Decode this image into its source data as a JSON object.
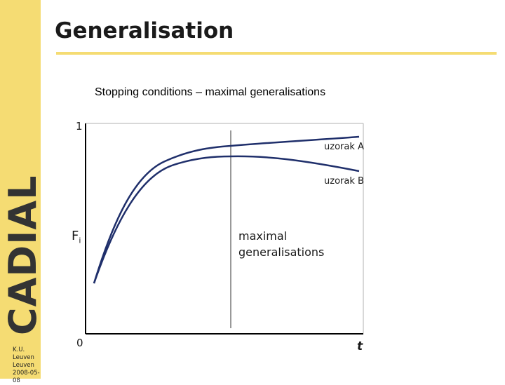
{
  "sidebar": {
    "brand": "CADIAL",
    "org_line1": "K.U. Leuven",
    "org_line2": "Leuven",
    "date": "2008-05-08"
  },
  "slide": {
    "title": "Generalisation",
    "subtitle": "Stopping conditions – maximal generalisations"
  },
  "chart_data": {
    "type": "line",
    "y_axis_label": "F",
    "y_axis_subscript": "i",
    "x_axis_label": "t",
    "y_tick_top": "1",
    "y_tick_bottom": "0",
    "series": [
      {
        "name": "uzorak A",
        "color": "#1f2f6b"
      },
      {
        "name": "uzorak B",
        "color": "#1f2f6b"
      }
    ],
    "annotation": {
      "text_line1": "maximal",
      "text_line2": "generalisations"
    }
  },
  "colors": {
    "accent": "#f5dc73",
    "curve": "#1f2f6b",
    "axis": "#000000",
    "frame": "#9a9a9a"
  }
}
